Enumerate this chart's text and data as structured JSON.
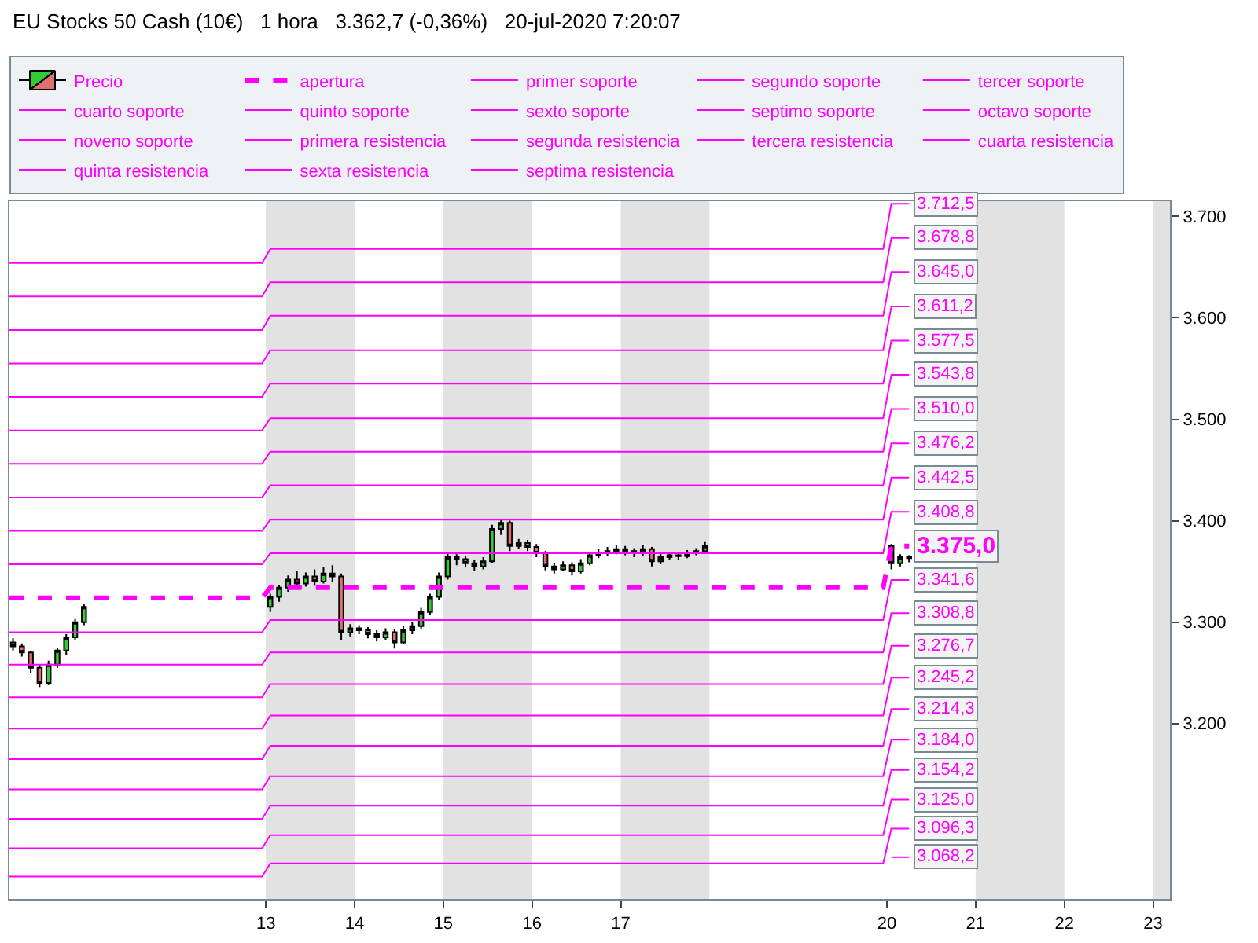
{
  "chart_data": {
    "type": "candlestick",
    "title": "EU Stocks 50 Cash (10€)   1 hora   3.362,7 (-0,36%)   20-jul-2020 7:20:07",
    "xlim": [
      "2020-07-10T02:38",
      "2020-07-23T04:34"
    ],
    "xticks": [
      {
        "value": "2020-07-13",
        "label": "13"
      },
      {
        "value": "2020-07-14",
        "label": "14"
      },
      {
        "value": "2020-07-15",
        "label": "15"
      },
      {
        "value": "2020-07-16",
        "label": "16"
      },
      {
        "value": "2020-07-17",
        "label": "17"
      },
      {
        "value": "2020-07-20",
        "label": "20"
      },
      {
        "value": "2020-07-21",
        "label": "21"
      },
      {
        "value": "2020-07-22",
        "label": "22"
      },
      {
        "value": "2020-07-23",
        "label": "23"
      }
    ],
    "ylim": [
      3027,
      3715
    ],
    "yticks": [
      {
        "value": 3200,
        "label": "3.200"
      },
      {
        "value": 3300,
        "label": "3.300"
      },
      {
        "value": 3400,
        "label": "3.400"
      },
      {
        "value": 3500,
        "label": "3.500"
      },
      {
        "value": 3600,
        "label": "3.600"
      },
      {
        "value": 3700,
        "label": "3.700"
      }
    ],
    "grid": false,
    "legend": "top",
    "bands": [
      {
        "axis": "x",
        "from": "2020-07-13",
        "to": "2020-07-14",
        "color": "#e2e2e2"
      },
      {
        "axis": "x",
        "from": "2020-07-15",
        "to": "2020-07-16",
        "color": "#e2e2e2"
      },
      {
        "axis": "x",
        "from": "2020-07-17",
        "to": "2020-07-18",
        "color": "#e2e2e2"
      },
      {
        "axis": "x",
        "from": "2020-07-21",
        "to": "2020-07-22",
        "color": "#e2e2e2"
      },
      {
        "axis": "x",
        "from": "2020-07-23",
        "to": "2020-07-23T04:34",
        "color": "#e2e2e2"
      }
    ],
    "series": [
      {
        "name": "Precio",
        "x": [
          "2020-07-10T03:36",
          "2020-07-10T06:00",
          "2020-07-10T08:24",
          "2020-07-10T10:48",
          "2020-07-10T13:12",
          "2020-07-10T15:36",
          "2020-07-10T18:00",
          "2020-07-10T20:24",
          "2020-07-10T22:48",
          "2020-07-13T01:12",
          "2020-07-13T03:36",
          "2020-07-13T06:00",
          "2020-07-13T08:24",
          "2020-07-13T10:48",
          "2020-07-13T13:12",
          "2020-07-13T15:36",
          "2020-07-13T18:00",
          "2020-07-13T20:24",
          "2020-07-13T22:48",
          "2020-07-14T01:12",
          "2020-07-14T03:36",
          "2020-07-14T06:00",
          "2020-07-14T08:24",
          "2020-07-14T10:48",
          "2020-07-14T13:12",
          "2020-07-14T15:36",
          "2020-07-14T18:00",
          "2020-07-14T20:24",
          "2020-07-14T22:48",
          "2020-07-15T01:12",
          "2020-07-15T03:36",
          "2020-07-15T06:00",
          "2020-07-15T08:24",
          "2020-07-15T10:48",
          "2020-07-15T13:12",
          "2020-07-15T15:36",
          "2020-07-15T18:00",
          "2020-07-15T20:24",
          "2020-07-15T22:48",
          "2020-07-16T01:12",
          "2020-07-16T03:36",
          "2020-07-16T06:00",
          "2020-07-16T08:24",
          "2020-07-16T10:48",
          "2020-07-16T13:12",
          "2020-07-16T15:36",
          "2020-07-16T18:00",
          "2020-07-16T20:24",
          "2020-07-16T22:48",
          "2020-07-17T01:12",
          "2020-07-17T03:36",
          "2020-07-17T06:00",
          "2020-07-17T08:24",
          "2020-07-17T10:48",
          "2020-07-17T13:12",
          "2020-07-17T15:36",
          "2020-07-17T18:00",
          "2020-07-17T20:24",
          "2020-07-17T22:48",
          "2020-07-20T01:12",
          "2020-07-20T03:36",
          "2020-07-20T06:00"
        ],
        "ohlc": [
          [
            3280,
            3284,
            3272,
            3276
          ],
          [
            3276,
            3279,
            3266,
            3270
          ],
          [
            3270,
            3272,
            3250,
            3255
          ],
          [
            3255,
            3258,
            3236,
            3240
          ],
          [
            3240,
            3262,
            3238,
            3258
          ],
          [
            3258,
            3275,
            3255,
            3272
          ],
          [
            3272,
            3288,
            3268,
            3285
          ],
          [
            3285,
            3303,
            3282,
            3300
          ],
          [
            3300,
            3318,
            3297,
            3315
          ],
          [
            3315,
            3328,
            3310,
            3325
          ],
          [
            3325,
            3337,
            3320,
            3334
          ],
          [
            3334,
            3346,
            3330,
            3342
          ],
          [
            3342,
            3350,
            3334,
            3338
          ],
          [
            3338,
            3349,
            3335,
            3345
          ],
          [
            3345,
            3352,
            3336,
            3340
          ],
          [
            3340,
            3354,
            3338,
            3348
          ],
          [
            3348,
            3356,
            3340,
            3345
          ],
          [
            3345,
            3348,
            3282,
            3290
          ],
          [
            3290,
            3298,
            3286,
            3294
          ],
          [
            3294,
            3297,
            3288,
            3292
          ],
          [
            3292,
            3295,
            3284,
            3288
          ],
          [
            3288,
            3292,
            3281,
            3285
          ],
          [
            3285,
            3294,
            3282,
            3290
          ],
          [
            3290,
            3293,
            3274,
            3280
          ],
          [
            3280,
            3296,
            3278,
            3292
          ],
          [
            3292,
            3300,
            3288,
            3296
          ],
          [
            3296,
            3314,
            3293,
            3310
          ],
          [
            3310,
            3328,
            3307,
            3325
          ],
          [
            3325,
            3349,
            3322,
            3345
          ],
          [
            3345,
            3368,
            3342,
            3364
          ],
          [
            3364,
            3367,
            3356,
            3362
          ],
          [
            3362,
            3365,
            3354,
            3358
          ],
          [
            3358,
            3361,
            3350,
            3355
          ],
          [
            3355,
            3364,
            3352,
            3360
          ],
          [
            3360,
            3396,
            3358,
            3392
          ],
          [
            3392,
            3402,
            3386,
            3398
          ],
          [
            3398,
            3400,
            3370,
            3375
          ],
          [
            3375,
            3382,
            3372,
            3378
          ],
          [
            3378,
            3381,
            3370,
            3374
          ],
          [
            3374,
            3377,
            3364,
            3368
          ],
          [
            3368,
            3370,
            3351,
            3355
          ],
          [
            3355,
            3358,
            3348,
            3352
          ],
          [
            3352,
            3360,
            3350,
            3356
          ],
          [
            3356,
            3359,
            3346,
            3350
          ],
          [
            3350,
            3362,
            3348,
            3358
          ],
          [
            3358,
            3369,
            3356,
            3366
          ],
          [
            3366,
            3372,
            3363,
            3368
          ],
          [
            3368,
            3374,
            3365,
            3370
          ],
          [
            3370,
            3376,
            3367,
            3372
          ],
          [
            3372,
            3375,
            3366,
            3370
          ],
          [
            3370,
            3373,
            3364,
            3368
          ],
          [
            3368,
            3376,
            3365,
            3372
          ],
          [
            3372,
            3374,
            3355,
            3360
          ],
          [
            3360,
            3368,
            3357,
            3364
          ],
          [
            3364,
            3369,
            3361,
            3366
          ],
          [
            3366,
            3369,
            3361,
            3365
          ],
          [
            3365,
            3371,
            3363,
            3368
          ],
          [
            3368,
            3373,
            3366,
            3370
          ],
          [
            3370,
            3379,
            3368,
            3375
          ],
          [
            3375,
            3377,
            3352,
            3358
          ],
          [
            3358,
            3367,
            3355,
            3364
          ],
          [
            3364,
            3366,
            3359,
            3363
          ]
        ]
      },
      {
        "name": "apertura",
        "type": "line",
        "color": "#ff00ff",
        "line_style": "dashed",
        "x": [
          "2020-07-10T02:38",
          "2020-07-12T23:00",
          "2020-07-13T01:12",
          "2020-07-19T23:00",
          "2020-07-20T01:12",
          "2020-07-20T06:00"
        ],
        "values": [
          3324,
          3324,
          3334,
          3334,
          3375.0,
          3375.0
        ],
        "value_labels": [
          null,
          null,
          null,
          null,
          null,
          "3.375,0"
        ]
      },
      {
        "name": "primer soporte",
        "type": "line",
        "color": "#ff00ff",
        "x": [
          "2020-07-10T02:38",
          "2020-07-12T23:00",
          "2020-07-13T01:12",
          "2020-07-19T23:00",
          "2020-07-20T01:12",
          "2020-07-20T06:00"
        ],
        "values": [
          3290,
          3290,
          3302,
          3302,
          3341.6,
          3341.6
        ],
        "value_labels": [
          null,
          null,
          null,
          null,
          null,
          "3.341,6"
        ]
      },
      {
        "name": "segundo soporte",
        "type": "line",
        "color": "#ff00ff",
        "x": [
          "2020-07-10T02:38",
          "2020-07-12T23:00",
          "2020-07-13T01:12",
          "2020-07-19T23:00",
          "2020-07-20T01:12",
          "2020-07-20T06:00"
        ],
        "values": [
          3258,
          3258,
          3270,
          3270,
          3308.8,
          3308.8
        ],
        "value_labels": [
          null,
          null,
          null,
          null,
          null,
          "3.308,8"
        ]
      },
      {
        "name": "tercer soporte",
        "type": "line",
        "color": "#ff00ff",
        "x": [
          "2020-07-10T02:38",
          "2020-07-12T23:00",
          "2020-07-13T01:12",
          "2020-07-19T23:00",
          "2020-07-20T01:12",
          "2020-07-20T06:00"
        ],
        "values": [
          3226,
          3226,
          3239,
          3239,
          3276.7,
          3276.7
        ],
        "value_labels": [
          null,
          null,
          null,
          null,
          null,
          "3.276,7"
        ]
      },
      {
        "name": "cuarto soporte",
        "type": "line",
        "color": "#ff00ff",
        "x": [
          "2020-07-10T02:38",
          "2020-07-12T23:00",
          "2020-07-13T01:12",
          "2020-07-19T23:00",
          "2020-07-20T01:12",
          "2020-07-20T06:00"
        ],
        "values": [
          3195,
          3195,
          3208,
          3208,
          3245.2,
          3245.2
        ],
        "value_labels": [
          null,
          null,
          null,
          null,
          null,
          "3.245,2"
        ]
      },
      {
        "name": "quinto soporte",
        "type": "line",
        "color": "#ff00ff",
        "x": [
          "2020-07-10T02:38",
          "2020-07-12T23:00",
          "2020-07-13T01:12",
          "2020-07-19T23:00",
          "2020-07-20T01:12",
          "2020-07-20T06:00"
        ],
        "values": [
          3165,
          3165,
          3178,
          3178,
          3214.3,
          3214.3
        ],
        "value_labels": [
          null,
          null,
          null,
          null,
          null,
          "3.214,3"
        ]
      },
      {
        "name": "sexto soporte",
        "type": "line",
        "color": "#ff00ff",
        "x": [
          "2020-07-10T02:38",
          "2020-07-12T23:00",
          "2020-07-13T01:12",
          "2020-07-19T23:00",
          "2020-07-20T01:12",
          "2020-07-20T06:00"
        ],
        "values": [
          3135,
          3135,
          3148,
          3148,
          3184.0,
          3184.0
        ],
        "value_labels": [
          null,
          null,
          null,
          null,
          null,
          "3.184,0"
        ]
      },
      {
        "name": "septimo soporte",
        "type": "line",
        "color": "#ff00ff",
        "x": [
          "2020-07-10T02:38",
          "2020-07-12T23:00",
          "2020-07-13T01:12",
          "2020-07-19T23:00",
          "2020-07-20T01:12",
          "2020-07-20T06:00"
        ],
        "values": [
          3106,
          3106,
          3119,
          3119,
          3154.2,
          3154.2
        ],
        "value_labels": [
          null,
          null,
          null,
          null,
          null,
          "3.154,2"
        ]
      },
      {
        "name": "octavo soporte",
        "type": "line",
        "color": "#ff00ff",
        "x": [
          "2020-07-10T02:38",
          "2020-07-12T23:00",
          "2020-07-13T01:12",
          "2020-07-19T23:00",
          "2020-07-20T01:12",
          "2020-07-20T06:00"
        ],
        "values": [
          3077,
          3077,
          3090,
          3090,
          3125.0,
          3125.0
        ],
        "value_labels": [
          null,
          null,
          null,
          null,
          null,
          "3.125,0"
        ]
      },
      {
        "name": "noveno soporte",
        "type": "line",
        "color": "#ff00ff",
        "x": [
          "2020-07-10T02:38",
          "2020-07-12T23:00",
          "2020-07-13T01:12",
          "2020-07-19T23:00",
          "2020-07-20T01:12",
          "2020-07-20T06:00"
        ],
        "values": [
          3049,
          3049,
          3062,
          3062,
          3096.3,
          3096.3
        ],
        "value_labels": [
          null,
          null,
          null,
          null,
          null,
          "3.096,3"
        ]
      },
      {
        "type": "line",
        "color": "#ff00ff",
        "x": [
          "2020-07-20T01:12",
          "2020-07-20T06:00"
        ],
        "values": [
          3068.2,
          3068.2
        ],
        "value_labels": [
          null,
          "3.068,2"
        ]
      },
      {
        "name": "primera resistencia",
        "type": "line",
        "color": "#ff00ff",
        "x": [
          "2020-07-10T02:38",
          "2020-07-12T23:00",
          "2020-07-13T01:12",
          "2020-07-19T23:00",
          "2020-07-20T01:12",
          "2020-07-20T06:00"
        ],
        "values": [
          3357,
          3357,
          3368,
          3368,
          3408.8,
          3408.8
        ],
        "value_labels": [
          null,
          null,
          null,
          null,
          null,
          "3.408,8"
        ]
      },
      {
        "name": "segunda resistencia",
        "type": "line",
        "color": "#ff00ff",
        "x": [
          "2020-07-10T02:38",
          "2020-07-12T23:00",
          "2020-07-13T01:12",
          "2020-07-19T23:00",
          "2020-07-20T01:12",
          "2020-07-20T06:00"
        ],
        "values": [
          3390,
          3390,
          3401,
          3401,
          3442.5,
          3442.5
        ],
        "value_labels": [
          null,
          null,
          null,
          null,
          null,
          "3.442,5"
        ]
      },
      {
        "name": "tercera resistencia",
        "type": "line",
        "color": "#ff00ff",
        "x": [
          "2020-07-10T02:38",
          "2020-07-12T23:00",
          "2020-07-13T01:12",
          "2020-07-19T23:00",
          "2020-07-20T01:12",
          "2020-07-20T06:00"
        ],
        "values": [
          3423,
          3423,
          3435,
          3435,
          3476.2,
          3476.2
        ],
        "value_labels": [
          null,
          null,
          null,
          null,
          null,
          "3.476,2"
        ]
      },
      {
        "name": "cuarta resistencia",
        "type": "line",
        "color": "#ff00ff",
        "x": [
          "2020-07-10T02:38",
          "2020-07-12T23:00",
          "2020-07-13T01:12",
          "2020-07-19T23:00",
          "2020-07-20T01:12",
          "2020-07-20T06:00"
        ],
        "values": [
          3456,
          3456,
          3468,
          3468,
          3510.0,
          3510.0
        ],
        "value_labels": [
          null,
          null,
          null,
          null,
          null,
          "3.510,0"
        ]
      },
      {
        "name": "quinta resistencia",
        "type": "line",
        "color": "#ff00ff",
        "x": [
          "2020-07-10T02:38",
          "2020-07-12T23:00",
          "2020-07-13T01:12",
          "2020-07-19T23:00",
          "2020-07-20T01:12",
          "2020-07-20T06:00"
        ],
        "values": [
          3489,
          3489,
          3501,
          3501,
          3543.8,
          3543.8
        ],
        "value_labels": [
          null,
          null,
          null,
          null,
          null,
          "3.543,8"
        ]
      },
      {
        "name": "sexta resistencia",
        "type": "line",
        "color": "#ff00ff",
        "x": [
          "2020-07-10T02:38",
          "2020-07-12T23:00",
          "2020-07-13T01:12",
          "2020-07-19T23:00",
          "2020-07-20T01:12",
          "2020-07-20T06:00"
        ],
        "values": [
          3522,
          3522,
          3535,
          3535,
          3577.5,
          3577.5
        ],
        "value_labels": [
          null,
          null,
          null,
          null,
          null,
          "3.577,5"
        ]
      },
      {
        "name": "septima resistencia",
        "type": "line",
        "color": "#ff00ff",
        "x": [
          "2020-07-10T02:38",
          "2020-07-12T23:00",
          "2020-07-13T01:12",
          "2020-07-19T23:00",
          "2020-07-20T01:12",
          "2020-07-20T06:00"
        ],
        "values": [
          3555,
          3555,
          3568,
          3568,
          3611.2,
          3611.2
        ],
        "value_labels": [
          null,
          null,
          null,
          null,
          null,
          "3.611,2"
        ]
      },
      {
        "type": "line",
        "color": "#ff00ff",
        "x": [
          "2020-07-10T02:38",
          "2020-07-12T23:00",
          "2020-07-13T01:12",
          "2020-07-19T23:00",
          "2020-07-20T01:12",
          "2020-07-20T06:00"
        ],
        "values": [
          3588,
          3588,
          3602,
          3602,
          3645.0,
          3645.0
        ],
        "value_labels": [
          null,
          null,
          null,
          null,
          null,
          "3.645,0"
        ]
      },
      {
        "type": "line",
        "color": "#ff00ff",
        "x": [
          "2020-07-10T02:38",
          "2020-07-12T23:00",
          "2020-07-13T01:12",
          "2020-07-19T23:00",
          "2020-07-20T01:12",
          "2020-07-20T06:00"
        ],
        "values": [
          3621,
          3621,
          3635,
          3635,
          3678.8,
          3678.8
        ],
        "value_labels": [
          null,
          null,
          null,
          null,
          null,
          "3.678,8"
        ]
      },
      {
        "type": "line",
        "color": "#ff00ff",
        "x": [
          "2020-07-10T02:38",
          "2020-07-12T23:00",
          "2020-07-13T01:12",
          "2020-07-19T23:00",
          "2020-07-20T01:12",
          "2020-07-20T06:00"
        ],
        "values": [
          3654,
          3654,
          3668,
          3668,
          3712.5,
          3712.5
        ],
        "value_labels": [
          null,
          null,
          null,
          null,
          null,
          "3.712,5"
        ]
      }
    ]
  }
}
